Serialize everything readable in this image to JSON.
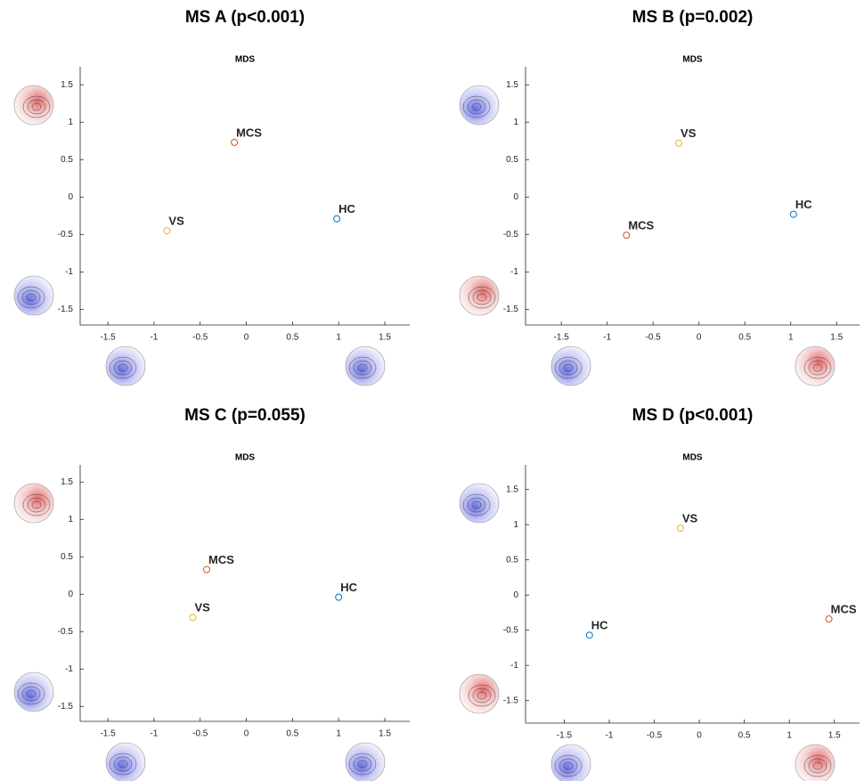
{
  "chart_data": [
    {
      "type": "scatter",
      "title": "MS A (p<0.001)",
      "subtitle": "MDS",
      "xlim": [
        -1.8,
        1.77
      ],
      "ylim": [
        -1.71,
        1.74
      ],
      "xticks": [
        -1.5,
        -1,
        -0.5,
        0,
        0.5,
        1,
        1.5
      ],
      "yticks": [
        -1.5,
        -1,
        -0.5,
        0,
        0.5,
        1,
        1.5
      ],
      "series": [
        {
          "name": "HC",
          "color": "#0072BD",
          "x": [
            0.98
          ],
          "values": [
            -0.29
          ]
        },
        {
          "name": "MCS",
          "color": "#D95319",
          "x": [
            -0.13
          ],
          "values": [
            0.73
          ]
        },
        {
          "name": "VS",
          "color": "#EDB120",
          "x": [
            -0.86
          ],
          "values": [
            -0.45
          ]
        }
      ]
    },
    {
      "type": "scatter",
      "title": "MS B (p=0.002)",
      "subtitle": "MDS",
      "xlim": [
        -1.89,
        1.75
      ],
      "ylim": [
        -1.71,
        1.74
      ],
      "xticks": [
        -1.5,
        -1,
        -0.5,
        0,
        0.5,
        1,
        1.5
      ],
      "yticks": [
        -1.5,
        -1,
        -0.5,
        0,
        0.5,
        1,
        1.5
      ],
      "series": [
        {
          "name": "HC",
          "color": "#0072BD",
          "x": [
            1.03
          ],
          "values": [
            -0.23
          ]
        },
        {
          "name": "MCS",
          "color": "#D95319",
          "x": [
            -0.79
          ],
          "values": [
            -0.51
          ]
        },
        {
          "name": "VS",
          "color": "#EDB120",
          "x": [
            -0.22
          ],
          "values": [
            0.72
          ]
        }
      ]
    },
    {
      "type": "scatter",
      "title": "MS C (p=0.055)",
      "subtitle": "MDS",
      "xlim": [
        -1.8,
        1.77
      ],
      "ylim": [
        -1.7,
        1.73
      ],
      "xticks": [
        -1.5,
        -1,
        -0.5,
        0,
        0.5,
        1,
        1.5
      ],
      "yticks": [
        -1.5,
        -1,
        -0.5,
        0,
        0.5,
        1,
        1.5
      ],
      "series": [
        {
          "name": "HC",
          "color": "#0072BD",
          "x": [
            1.0
          ],
          "values": [
            -0.04
          ]
        },
        {
          "name": "MCS",
          "color": "#D95319",
          "x": [
            -0.43
          ],
          "values": [
            0.33
          ]
        },
        {
          "name": "VS",
          "color": "#EDB120",
          "x": [
            -0.58
          ],
          "values": [
            -0.31
          ]
        }
      ]
    },
    {
      "type": "scatter",
      "title": "MS D (p<0.001)",
      "subtitle": "MDS",
      "xlim": [
        -1.93,
        1.78
      ],
      "ylim": [
        -1.82,
        1.85
      ],
      "xticks": [
        -1.5,
        -1,
        -0.5,
        0,
        0.5,
        1,
        1.5
      ],
      "yticks": [
        -1.5,
        -1,
        -0.5,
        0,
        0.5,
        1,
        1.5
      ],
      "series": [
        {
          "name": "HC",
          "color": "#0072BD",
          "x": [
            -1.22
          ],
          "values": [
            -0.57
          ]
        },
        {
          "name": "MCS",
          "color": "#D95319",
          "x": [
            1.44
          ],
          "values": [
            -0.34
          ]
        },
        {
          "name": "VS",
          "color": "#EDB120",
          "x": [
            -0.21
          ],
          "values": [
            0.95
          ]
        }
      ]
    }
  ]
}
